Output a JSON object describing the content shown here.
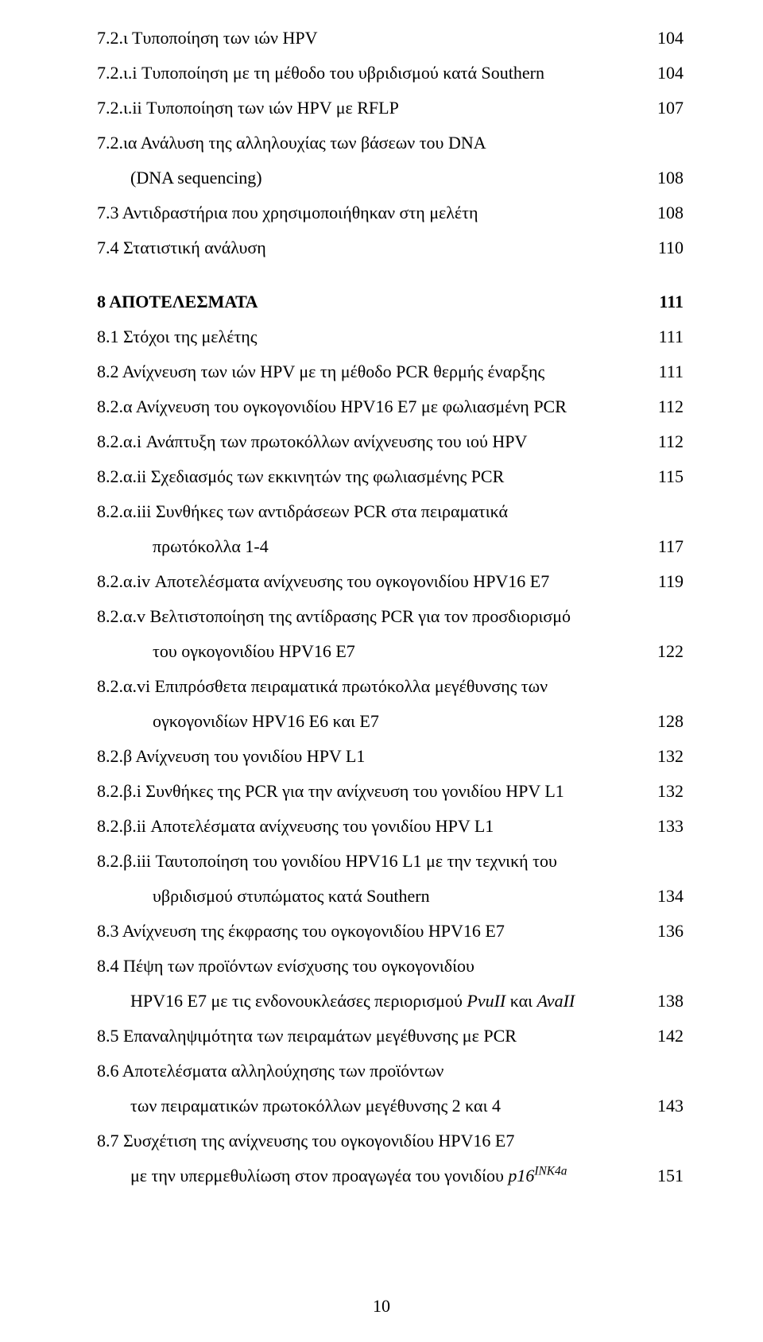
{
  "toc": [
    {
      "label": "7.2.ι Τυποποίηση των ιών HPV",
      "page": "104",
      "indent": 0,
      "bold": false,
      "gap": false
    },
    {
      "label": "7.2.ι.i Τυποποίηση με τη μέθοδο του υβριδισμού κατά Southern",
      "page": "104",
      "indent": 0,
      "bold": false,
      "gap": false
    },
    {
      "label": "7.2.ι.ii Τυποποίηση των ιών HPV με RFLP",
      "page": "107",
      "indent": 0,
      "bold": false,
      "gap": false
    },
    {
      "label": "7.2.ια Ανάλυση της αλληλουχίας των βάσεων του DNA",
      "page": "",
      "indent": 0,
      "bold": false,
      "gap": false
    },
    {
      "label": "(DNA sequencing)",
      "page": "108",
      "indent": 1,
      "bold": false,
      "gap": false
    },
    {
      "label": "7.3 Αντιδραστήρια που χρησιμοποιήθηκαν στη μελέτη",
      "page": "108",
      "indent": 0,
      "bold": false,
      "gap": false
    },
    {
      "label": "7.4 Στατιστική ανάλυση",
      "page": "110",
      "indent": 0,
      "bold": false,
      "gap": false
    },
    {
      "label": "8 ΑΠΟΤΕΛΕΣΜΑΤΑ",
      "page": "111",
      "indent": 0,
      "bold": true,
      "gap": true
    },
    {
      "label": "8.1 Στόχοι της μελέτης",
      "page": "111",
      "indent": 0,
      "bold": false,
      "gap": false
    },
    {
      "label": "8.2 Ανίχνευση των ιών HPV με τη μέθοδο PCR θερμής έναρξης",
      "page": "111",
      "indent": 0,
      "bold": false,
      "gap": false
    },
    {
      "label": "8.2.α Ανίχνευση του ογκογονιδίου HPV16 E7 με φωλιασμένη PCR",
      "page": "112",
      "indent": 0,
      "bold": false,
      "gap": false
    },
    {
      "label": "8.2.α.i Ανάπτυξη των πρωτοκόλλων ανίχνευσης του ιού HPV",
      "page": "112",
      "indent": 0,
      "bold": false,
      "gap": false
    },
    {
      "label": "8.2.α.ii Σχεδιασμός των εκκινητών της φωλιασμένης PCR",
      "page": "115",
      "indent": 0,
      "bold": false,
      "gap": false
    },
    {
      "label": "8.2.α.iii Συνθήκες των αντιδράσεων PCR στα πειραματικά",
      "page": "",
      "indent": 0,
      "bold": false,
      "gap": false
    },
    {
      "label": "πρωτόκολλα 1-4",
      "page": "117",
      "indent": 2,
      "bold": false,
      "gap": false
    },
    {
      "label": "8.2.α.iv Αποτελέσματα ανίχνευσης του ογκογονιδίου HPV16 E7",
      "page": "119",
      "indent": 0,
      "bold": false,
      "gap": false
    },
    {
      "label": "8.2.α.v Βελτιστοποίηση της αντίδρασης PCR για τον προσδιορισμό",
      "page": "",
      "indent": 0,
      "bold": false,
      "gap": false
    },
    {
      "label": "του ογκογονιδίου HPV16 E7",
      "page": "122",
      "indent": 2,
      "bold": false,
      "gap": false
    },
    {
      "label": "8.2.α.vi Επιπρόσθετα πειραματικά πρωτόκολλα μεγέθυνσης των",
      "page": "",
      "indent": 0,
      "bold": false,
      "gap": false
    },
    {
      "label": "ογκογονιδίων HPV16 E6 και E7",
      "page": "128",
      "indent": 2,
      "bold": false,
      "gap": false
    },
    {
      "label": "8.2.β Ανίχνευση του γονιδίου HPV L1",
      "page": "132",
      "indent": 0,
      "bold": false,
      "gap": false
    },
    {
      "label": "8.2.β.i Συνθήκες της PCR για την ανίχνευση του γονιδίου HPV L1",
      "page": "132",
      "indent": 0,
      "bold": false,
      "gap": false
    },
    {
      "label": "8.2.β.ii Αποτελέσματα ανίχνευσης του γονιδίου HPV L1",
      "page": "133",
      "indent": 0,
      "bold": false,
      "gap": false
    },
    {
      "label": "8.2.β.iii Ταυτοποίηση του γονιδίου HPV16 L1 με την τεχνική του",
      "page": "",
      "indent": 0,
      "bold": false,
      "gap": false
    },
    {
      "label": "υβριδισμού στυπώματος κατά Southern",
      "page": "134",
      "indent": 2,
      "bold": false,
      "gap": false
    },
    {
      "label": "8.3 Ανίχνευση της έκφρασης του ογκογονιδίου HPV16 E7",
      "page": "136",
      "indent": 0,
      "bold": false,
      "gap": false
    },
    {
      "label": "8.4 Πέψη των προϊόντων ενίσχυσης του ογκογονιδίου",
      "page": "",
      "indent": 0,
      "bold": false,
      "gap": false
    },
    {
      "label_html": "HPV16 E7 με τις ενδονουκλεάσες περιορισμού <span class=\"italic\">PvuII</span> και <span class=\"italic\">AvaII</span>",
      "page": "138",
      "indent": 1,
      "bold": false,
      "gap": false
    },
    {
      "label": "8.5 Επαναληψιμότητα των πειραμάτων μεγέθυνσης με PCR",
      "page": "142",
      "indent": 0,
      "bold": false,
      "gap": false
    },
    {
      "label": "8.6 Αποτελέσματα αλληλούχησης των προϊόντων",
      "page": "",
      "indent": 0,
      "bold": false,
      "gap": false
    },
    {
      "label": "των πειραματικών πρωτοκόλλων μεγέθυνσης 2 και 4",
      "page": "143",
      "indent": 1,
      "bold": false,
      "gap": false
    },
    {
      "label": "8.7 Συσχέτιση της ανίχνευσης του ογκογονιδίου HPV16 E7",
      "page": "",
      "indent": 0,
      "bold": false,
      "gap": false
    },
    {
      "label_html": "με την υπερμεθυλίωση στον προαγωγέα του γονιδίου <span class=\"italic\">p16<sup>INK4a</sup></span>",
      "page": "151",
      "indent": 1,
      "bold": false,
      "gap": false
    }
  ],
  "pageNumber": "10"
}
